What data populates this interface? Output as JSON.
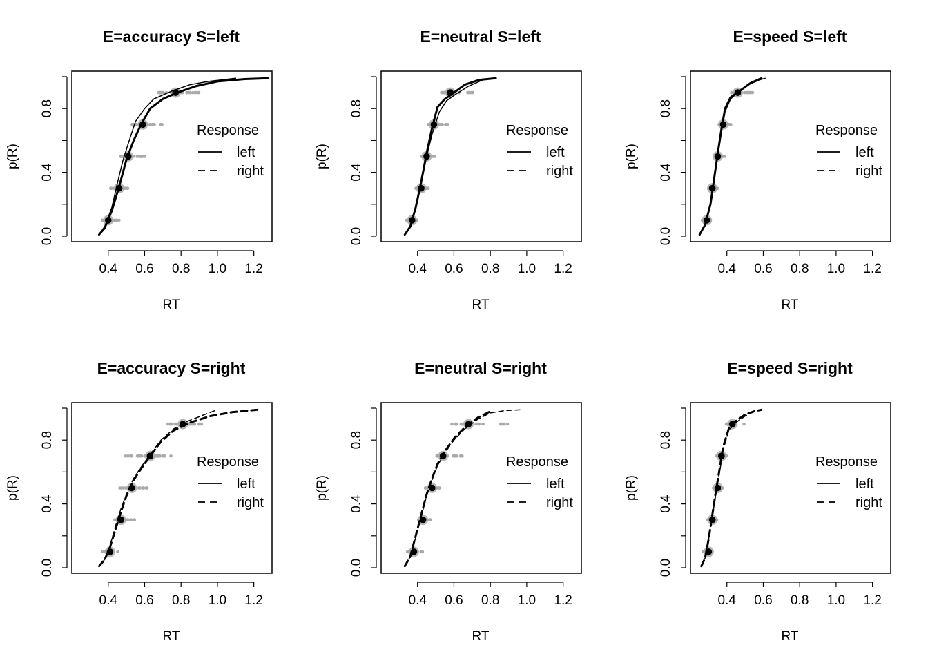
{
  "legend": {
    "title": "Response",
    "labels": [
      "left",
      "right"
    ],
    "styles": [
      "solid",
      "dashed"
    ]
  },
  "colors": {
    "observed_points": "#aaaaaa",
    "median": "#000000",
    "line": "#000000"
  },
  "chart_data": [
    {
      "type": "line",
      "title": "E=accuracy S=left",
      "xlabel": "RT",
      "ylabel": "p(R)",
      "xlim": [
        0.2,
        1.3
      ],
      "ylim": [
        0,
        1
      ],
      "xticks": [
        0.4,
        0.6,
        0.8,
        1.0,
        1.2
      ],
      "xtick_labels": [
        "0.4",
        "0.6",
        "0.8",
        "1.0",
        "1.2"
      ],
      "yticks": [
        0.0,
        0.2,
        0.4,
        0.6,
        0.8,
        1.0
      ],
      "ytick_labels": [
        "0.0",
        "",
        "0.4",
        "",
        "0.8",
        ""
      ],
      "legend_position": "right",
      "quantile_probs": [
        0.1,
        0.3,
        0.5,
        0.7,
        0.9
      ],
      "series": [
        {
          "name": "observed",
          "response": "left",
          "style": "solid",
          "width": 1.5,
          "x": [
            0.35,
            0.38,
            0.42,
            0.45,
            0.48,
            0.51,
            0.55,
            0.6,
            0.65,
            0.75,
            0.85,
            0.95,
            1.1
          ],
          "y": [
            0.01,
            0.06,
            0.18,
            0.33,
            0.47,
            0.58,
            0.72,
            0.8,
            0.86,
            0.91,
            0.95,
            0.97,
            0.99
          ]
        },
        {
          "name": "predicted",
          "response": "left",
          "style": "solid",
          "width": 3,
          "x": [
            0.35,
            0.38,
            0.42,
            0.46,
            0.5,
            0.54,
            0.58,
            0.63,
            0.7,
            0.78,
            0.88,
            1.0,
            1.15,
            1.28
          ],
          "y": [
            0.01,
            0.05,
            0.16,
            0.31,
            0.48,
            0.6,
            0.7,
            0.8,
            0.86,
            0.9,
            0.94,
            0.97,
            0.985,
            0.99
          ]
        },
        {
          "name": "quantile-medians",
          "response": "left",
          "type": "points",
          "x": [
            0.4,
            0.46,
            0.51,
            0.59,
            0.77
          ],
          "y": [
            0.1,
            0.3,
            0.5,
            0.7,
            0.9
          ]
        },
        {
          "name": "quantile-spread",
          "type": "range",
          "lo": [
            0.36,
            0.41,
            0.46,
            0.53,
            0.67
          ],
          "hi": [
            0.46,
            0.52,
            0.6,
            0.7,
            0.9
          ],
          "y": [
            0.1,
            0.3,
            0.5,
            0.7,
            0.9
          ]
        }
      ]
    },
    {
      "type": "line",
      "title": "E=neutral S=left",
      "xlabel": "RT",
      "ylabel": "p(R)",
      "xlim": [
        0.2,
        1.3
      ],
      "ylim": [
        0,
        1
      ],
      "xticks": [
        0.4,
        0.6,
        0.8,
        1.0,
        1.2
      ],
      "xtick_labels": [
        "0.4",
        "0.6",
        "0.8",
        "1.0",
        "1.2"
      ],
      "yticks": [
        0.0,
        0.2,
        0.4,
        0.6,
        0.8,
        1.0
      ],
      "ytick_labels": [
        "0.0",
        "",
        "0.4",
        "",
        "0.8",
        ""
      ],
      "legend_position": "right",
      "quantile_probs": [
        0.1,
        0.3,
        0.5,
        0.7,
        0.9
      ],
      "series": [
        {
          "name": "observed",
          "response": "left",
          "style": "solid",
          "width": 1.5,
          "x": [
            0.33,
            0.36,
            0.39,
            0.42,
            0.45,
            0.48,
            0.52,
            0.56,
            0.61,
            0.68,
            0.76,
            0.82
          ],
          "y": [
            0.01,
            0.06,
            0.18,
            0.33,
            0.5,
            0.64,
            0.78,
            0.85,
            0.89,
            0.94,
            0.98,
            0.99
          ]
        },
        {
          "name": "predicted",
          "response": "left",
          "style": "solid",
          "width": 3,
          "x": [
            0.33,
            0.36,
            0.39,
            0.42,
            0.45,
            0.48,
            0.51,
            0.55,
            0.6,
            0.66,
            0.74,
            0.83
          ],
          "y": [
            0.01,
            0.06,
            0.18,
            0.34,
            0.52,
            0.68,
            0.81,
            0.86,
            0.9,
            0.95,
            0.98,
            0.99
          ]
        },
        {
          "name": "quantile-medians",
          "response": "left",
          "type": "points",
          "x": [
            0.37,
            0.42,
            0.45,
            0.49,
            0.58
          ],
          "y": [
            0.1,
            0.3,
            0.5,
            0.7,
            0.9
          ]
        },
        {
          "name": "quantile-spread",
          "type": "range",
          "lo": [
            0.34,
            0.39,
            0.42,
            0.45,
            0.53
          ],
          "hi": [
            0.4,
            0.46,
            0.5,
            0.57,
            0.72
          ],
          "y": [
            0.1,
            0.3,
            0.5,
            0.7,
            0.9
          ]
        }
      ]
    },
    {
      "type": "line",
      "title": "E=speed S=left",
      "xlabel": "RT",
      "ylabel": "p(R)",
      "xlim": [
        0.2,
        1.3
      ],
      "ylim": [
        0,
        1
      ],
      "xticks": [
        0.4,
        0.6,
        0.8,
        1.0,
        1.2
      ],
      "xtick_labels": [
        "0.4",
        "0.6",
        "0.8",
        "1.0",
        "1.2"
      ],
      "yticks": [
        0.0,
        0.2,
        0.4,
        0.6,
        0.8,
        1.0
      ],
      "ytick_labels": [
        "0.0",
        "",
        "0.4",
        "",
        "0.8",
        ""
      ],
      "legend_position": "right",
      "quantile_probs": [
        0.1,
        0.3,
        0.5,
        0.7,
        0.9
      ],
      "series": [
        {
          "name": "observed",
          "response": "left",
          "style": "solid",
          "width": 1.5,
          "x": [
            0.25,
            0.28,
            0.31,
            0.33,
            0.35,
            0.37,
            0.39,
            0.42,
            0.46,
            0.52,
            0.58,
            0.61
          ],
          "y": [
            0.01,
            0.07,
            0.2,
            0.35,
            0.5,
            0.65,
            0.78,
            0.86,
            0.9,
            0.95,
            0.98,
            0.99
          ]
        },
        {
          "name": "predicted",
          "response": "left",
          "style": "solid",
          "width": 3,
          "x": [
            0.25,
            0.28,
            0.31,
            0.33,
            0.35,
            0.37,
            0.39,
            0.42,
            0.47,
            0.53,
            0.59
          ],
          "y": [
            0.01,
            0.07,
            0.2,
            0.36,
            0.52,
            0.67,
            0.8,
            0.87,
            0.91,
            0.96,
            0.99
          ]
        },
        {
          "name": "quantile-medians",
          "response": "left",
          "type": "points",
          "x": [
            0.29,
            0.32,
            0.35,
            0.38,
            0.46
          ],
          "y": [
            0.1,
            0.3,
            0.5,
            0.7,
            0.9
          ]
        },
        {
          "name": "quantile-spread",
          "type": "range",
          "lo": [
            0.26,
            0.3,
            0.32,
            0.35,
            0.42
          ],
          "hi": [
            0.31,
            0.35,
            0.39,
            0.43,
            0.55
          ],
          "y": [
            0.1,
            0.3,
            0.5,
            0.7,
            0.9
          ]
        }
      ]
    },
    {
      "type": "line",
      "title": "E=accuracy S=right",
      "xlabel": "RT",
      "ylabel": "p(R)",
      "xlim": [
        0.2,
        1.3
      ],
      "ylim": [
        0,
        1
      ],
      "xticks": [
        0.4,
        0.6,
        0.8,
        1.0,
        1.2
      ],
      "xtick_labels": [
        "0.4",
        "0.6",
        "0.8",
        "1.0",
        "1.2"
      ],
      "yticks": [
        0.0,
        0.2,
        0.4,
        0.6,
        0.8,
        1.0
      ],
      "ytick_labels": [
        "0.0",
        "",
        "0.4",
        "",
        "0.8",
        ""
      ],
      "legend_position": "right",
      "quantile_probs": [
        0.1,
        0.3,
        0.5,
        0.7,
        0.9
      ],
      "series": [
        {
          "name": "observed",
          "response": "right",
          "style": "dashed",
          "width": 1.5,
          "x": [
            0.35,
            0.38,
            0.41,
            0.44,
            0.47,
            0.5,
            0.54,
            0.58,
            0.63,
            0.69,
            0.76,
            0.84,
            0.93,
            1.0
          ],
          "y": [
            0.01,
            0.05,
            0.14,
            0.26,
            0.37,
            0.46,
            0.56,
            0.63,
            0.71,
            0.8,
            0.87,
            0.92,
            0.96,
            0.99
          ]
        },
        {
          "name": "predicted",
          "response": "right",
          "style": "dashed",
          "width": 3,
          "x": [
            0.35,
            0.38,
            0.41,
            0.44,
            0.47,
            0.5,
            0.54,
            0.58,
            0.63,
            0.69,
            0.76,
            0.85,
            0.96,
            1.08,
            1.22
          ],
          "y": [
            0.01,
            0.05,
            0.13,
            0.24,
            0.35,
            0.45,
            0.55,
            0.62,
            0.7,
            0.79,
            0.86,
            0.91,
            0.95,
            0.975,
            0.99
          ]
        },
        {
          "name": "quantile-medians",
          "response": "right",
          "type": "points",
          "x": [
            0.41,
            0.47,
            0.53,
            0.63,
            0.81
          ],
          "y": [
            0.1,
            0.3,
            0.5,
            0.7,
            0.9
          ]
        },
        {
          "name": "quantile-spread",
          "type": "range",
          "lo": [
            0.36,
            0.42,
            0.46,
            0.49,
            0.72
          ],
          "hi": [
            0.46,
            0.55,
            0.62,
            0.78,
            0.95
          ],
          "y": [
            0.1,
            0.3,
            0.5,
            0.7,
            0.9
          ]
        }
      ]
    },
    {
      "type": "line",
      "title": "E=neutral S=right",
      "xlabel": "RT",
      "ylabel": "p(R)",
      "xlim": [
        0.2,
        1.3
      ],
      "ylim": [
        0,
        1
      ],
      "xticks": [
        0.4,
        0.6,
        0.8,
        1.0,
        1.2
      ],
      "xtick_labels": [
        "0.4",
        "0.6",
        "0.8",
        "1.0",
        "1.2"
      ],
      "yticks": [
        0.0,
        0.2,
        0.4,
        0.6,
        0.8,
        1.0
      ],
      "ytick_labels": [
        "0.0",
        "",
        "0.4",
        "",
        "0.8",
        ""
      ],
      "legend_position": "right",
      "quantile_probs": [
        0.1,
        0.3,
        0.5,
        0.7,
        0.9
      ],
      "series": [
        {
          "name": "observed",
          "response": "right",
          "style": "dashed",
          "width": 1.5,
          "x": [
            0.33,
            0.36,
            0.39,
            0.42,
            0.45,
            0.48,
            0.51,
            0.55,
            0.6,
            0.66,
            0.73,
            0.8,
            0.88,
            0.97
          ],
          "y": [
            0.01,
            0.07,
            0.19,
            0.32,
            0.45,
            0.55,
            0.64,
            0.72,
            0.8,
            0.87,
            0.93,
            0.97,
            0.985,
            0.99
          ]
        },
        {
          "name": "predicted",
          "response": "right",
          "style": "dashed",
          "width": 3,
          "x": [
            0.33,
            0.36,
            0.39,
            0.42,
            0.45,
            0.48,
            0.51,
            0.55,
            0.6,
            0.66,
            0.73,
            0.8
          ],
          "y": [
            0.01,
            0.07,
            0.2,
            0.33,
            0.46,
            0.56,
            0.65,
            0.73,
            0.81,
            0.88,
            0.94,
            0.98
          ]
        },
        {
          "name": "quantile-medians",
          "response": "right",
          "type": "points",
          "x": [
            0.38,
            0.43,
            0.48,
            0.54,
            0.68
          ],
          "y": [
            0.1,
            0.3,
            0.5,
            0.7,
            0.9
          ]
        },
        {
          "name": "quantile-spread",
          "type": "range",
          "lo": [
            0.34,
            0.4,
            0.44,
            0.49,
            0.58
          ],
          "hi": [
            0.43,
            0.48,
            0.54,
            0.65,
            0.9
          ],
          "y": [
            0.1,
            0.3,
            0.5,
            0.7,
            0.9
          ]
        }
      ]
    },
    {
      "type": "line",
      "title": "E=speed S=right",
      "xlabel": "RT",
      "ylabel": "p(R)",
      "xlim": [
        0.2,
        1.3
      ],
      "ylim": [
        0,
        1
      ],
      "xticks": [
        0.4,
        0.6,
        0.8,
        1.0,
        1.2
      ],
      "xtick_labels": [
        "0.4",
        "0.6",
        "0.8",
        "1.0",
        "1.2"
      ],
      "yticks": [
        0.0,
        0.2,
        0.4,
        0.6,
        0.8,
        1.0
      ],
      "ytick_labels": [
        "0.0",
        "",
        "0.4",
        "",
        "0.8",
        ""
      ],
      "legend_position": "right",
      "quantile_probs": [
        0.1,
        0.3,
        0.5,
        0.7,
        0.9
      ],
      "series": [
        {
          "name": "observed",
          "response": "right",
          "style": "dashed",
          "width": 1.5,
          "x": [
            0.26,
            0.28,
            0.3,
            0.32,
            0.34,
            0.36,
            0.38,
            0.41,
            0.45,
            0.5,
            0.55,
            0.6
          ],
          "y": [
            0.01,
            0.06,
            0.18,
            0.32,
            0.46,
            0.6,
            0.74,
            0.86,
            0.91,
            0.95,
            0.98,
            0.99
          ]
        },
        {
          "name": "predicted",
          "response": "right",
          "style": "dashed",
          "width": 3,
          "x": [
            0.26,
            0.28,
            0.3,
            0.32,
            0.34,
            0.36,
            0.38,
            0.41,
            0.45,
            0.5,
            0.55,
            0.59
          ],
          "y": [
            0.01,
            0.06,
            0.18,
            0.33,
            0.48,
            0.62,
            0.76,
            0.87,
            0.92,
            0.96,
            0.98,
            0.99
          ]
        },
        {
          "name": "quantile-medians",
          "response": "right",
          "type": "points",
          "x": [
            0.3,
            0.32,
            0.35,
            0.37,
            0.43
          ],
          "y": [
            0.1,
            0.3,
            0.5,
            0.7,
            0.9
          ]
        },
        {
          "name": "quantile-spread",
          "type": "range",
          "lo": [
            0.27,
            0.29,
            0.32,
            0.34,
            0.39
          ],
          "hi": [
            0.32,
            0.35,
            0.38,
            0.41,
            0.51
          ],
          "y": [
            0.1,
            0.3,
            0.5,
            0.7,
            0.9
          ]
        }
      ]
    }
  ]
}
